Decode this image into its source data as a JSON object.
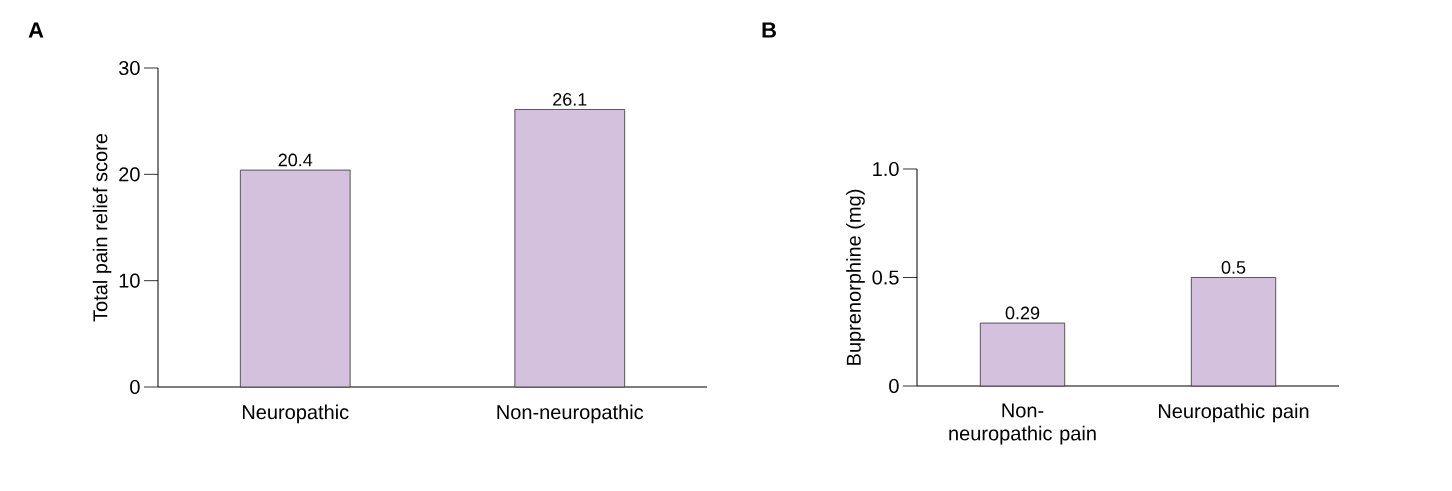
{
  "chart_data": [
    {
      "type": "bar",
      "title": "A",
      "ylabel": "Total pain relief score",
      "categories": [
        "Neuropathic",
        "Non-neuropathic"
      ],
      "values": [
        20.4,
        26.1
      ],
      "color": "#d3c1de",
      "ylim": [
        0,
        30
      ],
      "yticks": [
        0,
        10,
        20,
        30
      ],
      "data_labels": true
    },
    {
      "type": "bar",
      "title": "B",
      "ylabel": "Buprenorphine (mg)",
      "categories": [
        "Non-neuropathic pain",
        "Neuropathic pain"
      ],
      "values": [
        0.29,
        0.5
      ],
      "color": "#d3c1de",
      "ylim": [
        0,
        1.0
      ],
      "yticks": [
        0,
        0.5,
        {
          "value": 1.0,
          "label": "1.0"
        }
      ],
      "data_labels": true
    }
  ]
}
